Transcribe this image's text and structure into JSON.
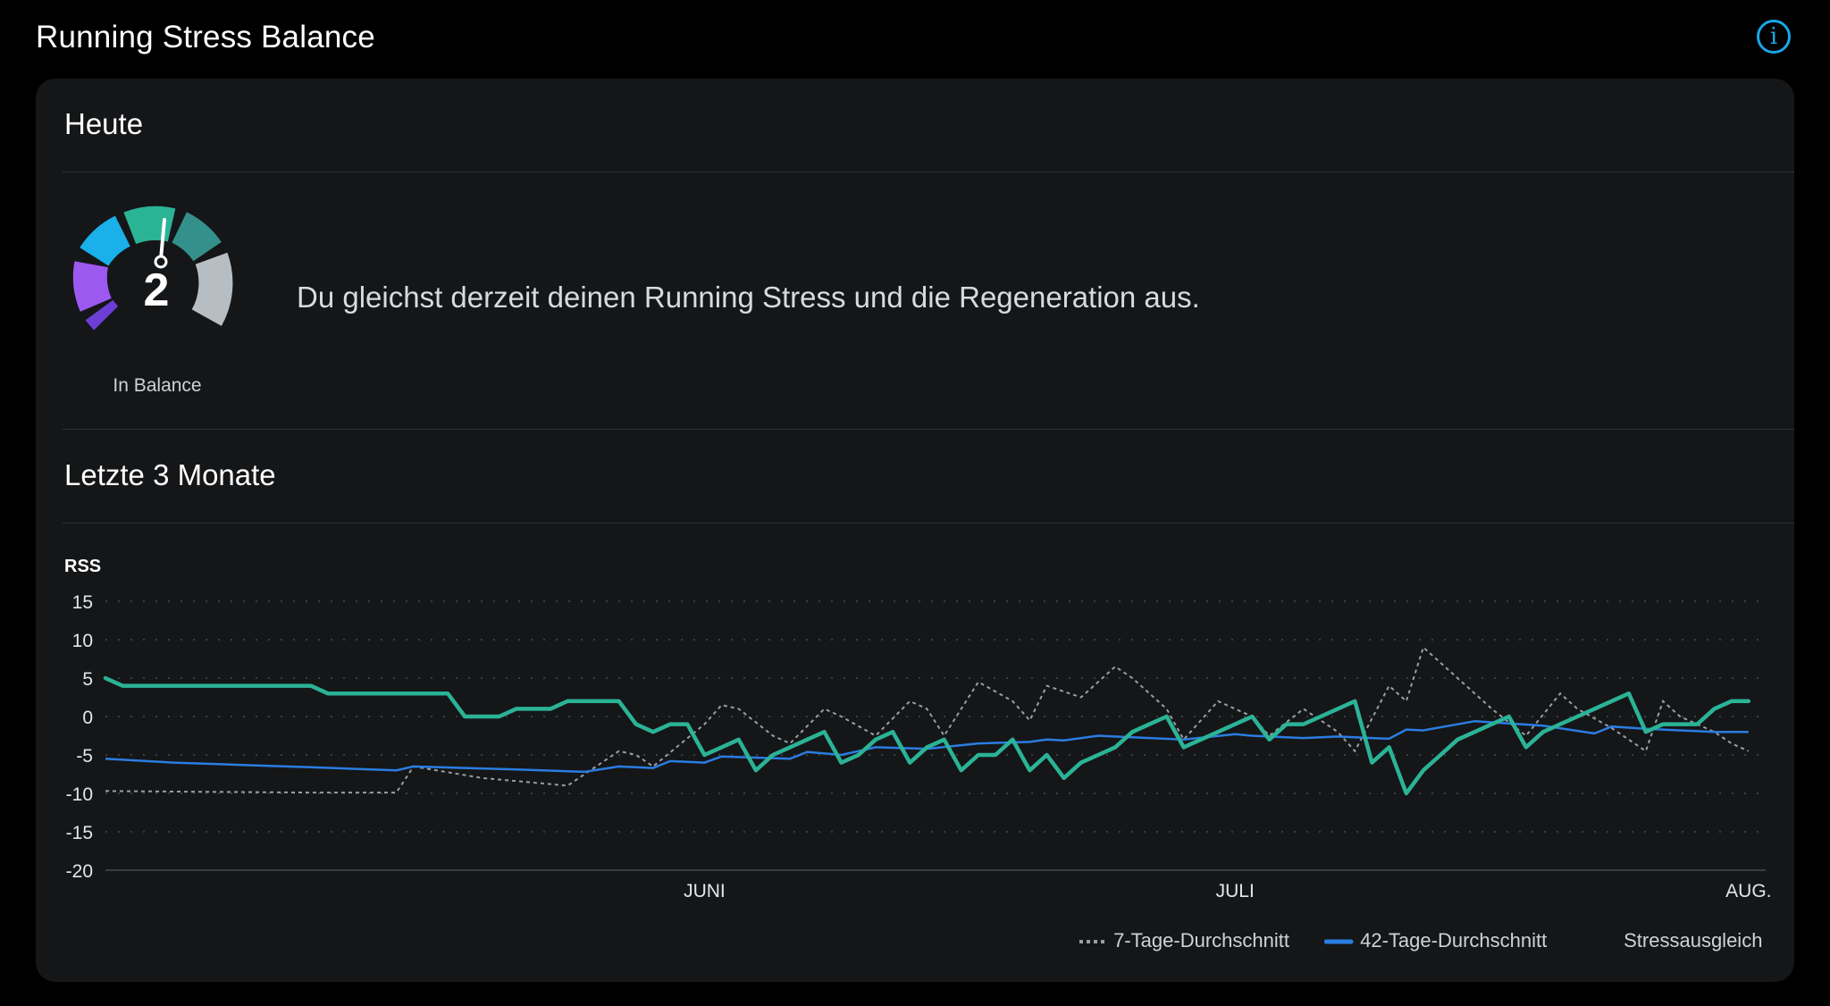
{
  "header": {
    "title": "Running Stress Balance",
    "info_icon": "info-icon",
    "info_label": "i"
  },
  "today": {
    "title": "Heute",
    "gauge": {
      "value": "2",
      "label": "In Balance",
      "numeric_value": 2,
      "min": -4,
      "max": 4
    },
    "message": "Du gleichst derzeit deinen Running Stress und die Regeneration aus."
  },
  "history": {
    "title": "Letzte 3 Monate"
  },
  "colors": {
    "accent": "#2bb396",
    "blue": "#2a7de1",
    "grey": "#9a9ea4",
    "info": "#1aa7e8"
  },
  "chart_data": {
    "type": "line",
    "ylabel": "RSS",
    "ylim": [
      -20,
      15
    ],
    "yticks": [
      15,
      10,
      5,
      0,
      -5,
      -10,
      -15,
      -20
    ],
    "xticks": [
      {
        "label": "JUNI",
        "x": 35
      },
      {
        "label": "JULI",
        "x": 66
      },
      {
        "label": "AUG.",
        "x": 96
      }
    ],
    "xlim": [
      0,
      97
    ],
    "grid": true,
    "legend_position": "bottom-right",
    "series": [
      {
        "name": "7-Tage-Durchschnitt",
        "style": "dotted",
        "x": [
          0,
          6,
          12,
          17,
          18,
          22,
          27,
          30,
          31,
          32,
          35,
          36,
          37,
          39,
          40,
          42,
          43,
          45,
          47,
          48,
          49,
          51,
          53,
          54,
          55,
          57,
          59,
          60,
          61,
          62,
          63,
          65,
          66,
          67,
          68,
          70,
          71,
          72,
          73,
          75,
          76,
          77,
          78,
          79,
          80,
          81,
          83,
          85,
          86,
          88,
          90,
          91,
          92,
          94,
          95,
          96
        ],
        "values": [
          -9.7,
          -9.8,
          -9.9,
          -9.9,
          -6.5,
          -8,
          -9,
          -4.5,
          -5,
          -6.5,
          -1,
          1.5,
          1,
          -2.5,
          -3.5,
          1,
          0,
          -2.5,
          2,
          1,
          -2.5,
          4.5,
          2,
          -0.5,
          4,
          2.5,
          6.5,
          5,
          3,
          1,
          -3,
          2,
          1,
          0,
          -2.5,
          1,
          -0.5,
          -2,
          -4.5,
          4,
          2,
          9,
          7,
          5,
          3,
          1,
          -2.5,
          3,
          1,
          -1.5,
          -4.5,
          2,
          0,
          -2,
          -3.5,
          -4.5
        ]
      },
      {
        "name": "42-Tage-Durchschnitt",
        "style": "solid",
        "x": [
          0,
          4,
          8,
          12,
          17,
          18,
          24,
          28,
          30,
          31,
          32,
          33,
          35,
          36,
          40,
          41,
          43,
          45,
          48,
          51,
          54,
          55,
          56,
          58,
          60,
          63,
          66,
          67,
          70,
          72,
          74,
          75,
          76,
          77,
          80,
          84,
          87,
          88,
          90,
          92,
          94,
          96
        ],
        "values": [
          -5.5,
          -6,
          -6.3,
          -6.6,
          -7,
          -6.5,
          -6.9,
          -7.2,
          -6.5,
          -6.6,
          -6.7,
          -5.8,
          -6,
          -5.2,
          -5.5,
          -4.6,
          -5,
          -4,
          -4.2,
          -3.5,
          -3.3,
          -3,
          -3.1,
          -2.5,
          -2.7,
          -3,
          -2.3,
          -2.5,
          -2.8,
          -2.6,
          -2.8,
          -2.9,
          -1.7,
          -1.8,
          -0.6,
          -1.2,
          -2.2,
          -1.3,
          -1.6,
          -1.8,
          -2,
          -2
        ]
      },
      {
        "name": "Stressausgleich",
        "style": "solid-thick",
        "x": [
          0,
          1,
          3,
          5,
          7,
          9,
          11,
          12,
          13,
          15,
          17,
          18,
          19,
          20,
          21,
          22,
          23,
          24,
          25,
          26,
          27,
          28,
          29,
          30,
          31,
          32,
          33,
          34,
          35,
          36,
          37,
          38,
          39,
          40,
          41,
          42,
          43,
          44,
          45,
          46,
          47,
          48,
          49,
          50,
          51,
          52,
          53,
          54,
          55,
          56,
          57,
          58,
          59,
          60,
          61,
          62,
          63,
          64,
          65,
          66,
          67,
          68,
          69,
          70,
          71,
          72,
          73,
          74,
          75,
          76,
          77,
          78,
          79,
          80,
          81,
          82,
          83,
          84,
          85,
          86,
          87,
          88,
          89,
          90,
          91,
          92,
          93,
          94,
          95,
          96
        ],
        "values": [
          5,
          4,
          4,
          4,
          4,
          4,
          4,
          4,
          3,
          3,
          3,
          3,
          3,
          3,
          0,
          0,
          0,
          1,
          1,
          1,
          2,
          2,
          2,
          2,
          -1,
          -2,
          -1,
          -1,
          -5,
          -4,
          -3,
          -7,
          -5,
          -4,
          -3,
          -2,
          -6,
          -5,
          -3,
          -2,
          -6,
          -4,
          -3,
          -7,
          -5,
          -5,
          -3,
          -7,
          -5,
          -8,
          -6,
          -5,
          -4,
          -2,
          -1,
          0,
          -4,
          -3,
          -2,
          -1,
          0,
          -3,
          -1,
          -1,
          0,
          1,
          2,
          -6,
          -4,
          -10,
          -7,
          -5,
          -3,
          -2,
          -1,
          0,
          -4,
          -2,
          -1,
          0,
          1,
          2,
          3,
          -2,
          -1,
          -1,
          -1,
          1,
          2,
          2
        ]
      }
    ]
  }
}
